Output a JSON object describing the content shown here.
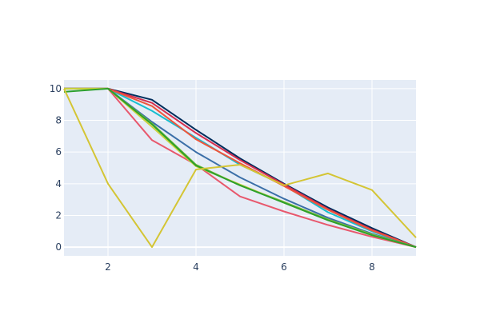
{
  "chart_data": {
    "type": "line",
    "title": "",
    "xlabel": "",
    "ylabel": "",
    "xlim": [
      1,
      9
    ],
    "ylim": [
      -0.55,
      10.55
    ],
    "x_ticks": [
      2,
      4,
      6,
      8
    ],
    "y_ticks": [
      0,
      2,
      4,
      6,
      8,
      10
    ],
    "grid": true,
    "legend": "none",
    "colors": {
      "plot_background": "#e5ecf6",
      "gridline": "#ffffff",
      "tick_text": "#2a3f5f"
    },
    "x": [
      1,
      2,
      3,
      4,
      5,
      6,
      7,
      8,
      9
    ],
    "series": [
      {
        "color": "#17becf",
        "values": [
          10.0,
          10.0,
          8.6,
          6.9,
          5.2,
          3.9,
          2.2,
          1.0,
          0.0
        ]
      },
      {
        "color": "#002d5c",
        "values": [
          10.0,
          10.0,
          9.3,
          7.4,
          5.6,
          4.0,
          2.5,
          1.2,
          0.0
        ]
      },
      {
        "color": "#d62f4f",
        "values": [
          10.0,
          10.0,
          9.1,
          7.2,
          5.5,
          3.95,
          2.4,
          1.1,
          0.0
        ]
      },
      {
        "color": "#ef553b",
        "values": [
          10.0,
          10.0,
          8.9,
          6.8,
          5.3,
          3.85,
          2.35,
          1.05,
          0.0
        ]
      },
      {
        "color": "#3b6fa8",
        "values": [
          10.0,
          10.0,
          7.9,
          6.0,
          4.4,
          3.05,
          1.85,
          0.85,
          0.0
        ]
      },
      {
        "color": "#e8586d",
        "values": [
          10.0,
          10.0,
          6.75,
          5.2,
          3.2,
          2.25,
          1.4,
          0.65,
          0.0
        ]
      },
      {
        "color": "#7fbf3f",
        "values": [
          10.0,
          10.0,
          7.8,
          5.2,
          3.9,
          2.85,
          1.75,
          0.8,
          0.0
        ]
      },
      {
        "color": "#c9d13b",
        "values": [
          10.0,
          10.0,
          7.6,
          5.1,
          3.95,
          2.8,
          1.7,
          0.75,
          0.0
        ]
      },
      {
        "color": "#2ca02c",
        "values": [
          9.8,
          10.0,
          7.75,
          5.15,
          3.9,
          2.8,
          1.7,
          0.75,
          0.0
        ]
      },
      {
        "color": "#d4c534",
        "values": [
          10.0,
          4.0,
          0.0,
          4.9,
          5.2,
          3.9,
          4.65,
          3.6,
          0.6
        ]
      }
    ]
  }
}
